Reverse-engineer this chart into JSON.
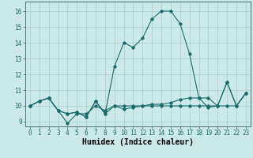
{
  "xlabel": "Humidex (Indice chaleur)",
  "background_color": "#cce9e9",
  "grid_color": "#aacccc",
  "line_color": "#1a6b6b",
  "x_values": [
    0,
    1,
    2,
    3,
    4,
    5,
    6,
    7,
    8,
    9,
    10,
    11,
    12,
    13,
    14,
    15,
    16,
    17,
    18,
    19,
    20,
    21,
    22,
    23
  ],
  "series": [
    [
      10.0,
      10.3,
      10.5,
      9.7,
      8.9,
      9.5,
      9.5,
      10.0,
      9.7,
      10.0,
      10.0,
      10.0,
      10.0,
      10.0,
      10.0,
      10.0,
      10.0,
      10.0,
      10.0,
      10.0,
      10.0,
      10.0,
      10.0,
      10.8
    ],
    [
      10.0,
      10.3,
      10.5,
      9.7,
      9.5,
      9.6,
      9.3,
      10.3,
      9.5,
      10.0,
      9.8,
      9.9,
      10.0,
      10.1,
      10.1,
      10.2,
      10.4,
      10.5,
      10.5,
      9.9,
      10.0,
      11.5,
      10.0,
      10.8
    ],
    [
      10.0,
      10.3,
      10.5,
      9.7,
      9.5,
      9.6,
      9.3,
      10.3,
      9.5,
      12.5,
      14.0,
      13.7,
      14.3,
      15.5,
      16.0,
      16.0,
      15.2,
      13.3,
      10.5,
      10.5,
      10.0,
      11.5,
      10.0,
      10.8
    ]
  ],
  "ylim": [
    8.7,
    16.6
  ],
  "xlim": [
    -0.5,
    23.5
  ],
  "yticks": [
    9,
    10,
    11,
    12,
    13,
    14,
    15,
    16
  ],
  "xticks": [
    0,
    1,
    2,
    3,
    4,
    5,
    6,
    7,
    8,
    9,
    10,
    11,
    12,
    13,
    14,
    15,
    16,
    17,
    18,
    19,
    20,
    21,
    22,
    23
  ],
  "tick_fontsize": 5.5,
  "label_fontsize": 7.0,
  "marker": "D",
  "markersize": 1.8,
  "linewidth": 0.8
}
